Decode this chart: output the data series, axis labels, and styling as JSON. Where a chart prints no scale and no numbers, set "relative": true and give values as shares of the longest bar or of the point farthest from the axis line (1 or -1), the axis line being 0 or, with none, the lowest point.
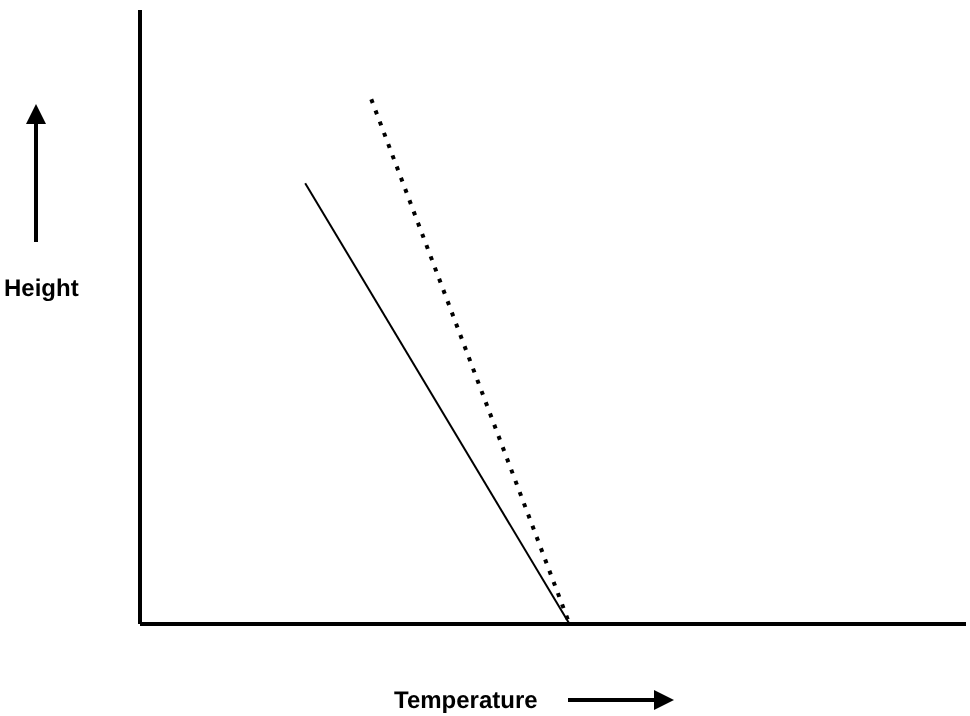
{
  "chart_data": {
    "type": "line",
    "xlabel": "Temperature",
    "ylabel": "Height",
    "relative": true,
    "marker": "none",
    "categories": [
      null,
      null,
      null,
      null,
      null,
      null,
      null,
      null,
      null,
      null,
      null,
      null,
      null,
      null,
      null,
      null,
      null,
      null,
      null,
      null,
      null,
      null,
      null,
      null,
      null,
      null
    ],
    "series": [
      {
        "color": "#000000",
        "line_style": "solid",
        "values": [
          null,
          null,
          null,
          null,
          null,
          0.84,
          null,
          null,
          null,
          null,
          null,
          null,
          null,
          0,
          null,
          null,
          null,
          null,
          null,
          null,
          null,
          null,
          null,
          null,
          null,
          null
        ]
      },
      {
        "color": "#000000",
        "line_style": "dotted",
        "values": [
          null,
          null,
          null,
          null,
          null,
          null,
          null,
          1,
          null,
          null,
          null,
          null,
          null,
          0,
          null,
          null,
          null,
          null,
          null,
          null,
          null,
          null,
          null,
          null,
          null,
          null
        ]
      }
    ]
  }
}
